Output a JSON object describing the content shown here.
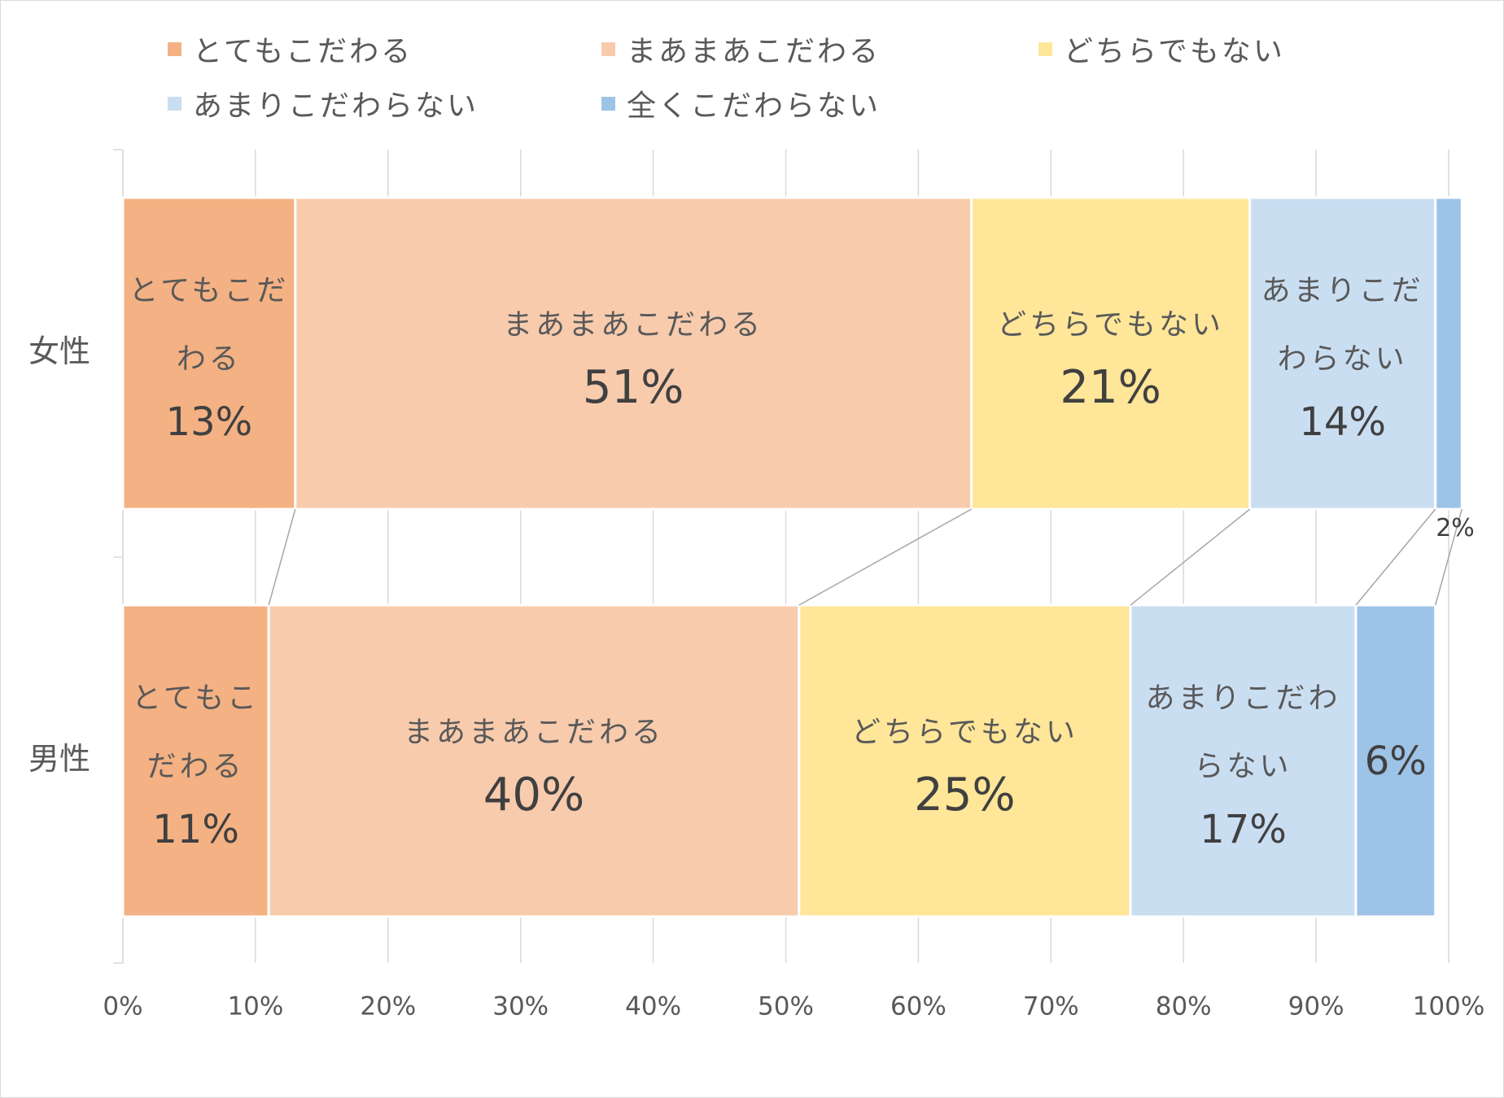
{
  "chart_data": {
    "type": "stacked_bar_horizontal",
    "categories": [
      "女性",
      "男性"
    ],
    "series": [
      {
        "name": "とてもこだわる",
        "color": "#f4b183",
        "values": [
          13,
          11
        ],
        "value_labels": [
          "13%",
          "11%"
        ]
      },
      {
        "name": "まあまあこだわる",
        "color": "#f8cbad",
        "values": [
          51,
          40
        ],
        "value_labels": [
          "51%",
          "40%"
        ]
      },
      {
        "name": "どちらでもない",
        "color": "#ffe699",
        "values": [
          21,
          25
        ],
        "value_labels": [
          "21%",
          "25%"
        ]
      },
      {
        "name": "あまりこだわらない",
        "color": "#cadef2",
        "values": [
          14,
          17
        ],
        "value_labels": [
          "14%",
          "17%"
        ]
      },
      {
        "name": "全くこだわらない",
        "color": "#9dc3e6",
        "values": [
          2,
          6
        ],
        "value_labels": [
          "2%",
          "6%"
        ]
      }
    ],
    "xlim": [
      0,
      100
    ],
    "xticks": [
      {
        "value": 0,
        "label": "0%"
      },
      {
        "value": 10,
        "label": "10%"
      },
      {
        "value": 20,
        "label": "20%"
      },
      {
        "value": 30,
        "label": "30%"
      },
      {
        "value": 40,
        "label": "40%"
      },
      {
        "value": 50,
        "label": "50%"
      },
      {
        "value": 60,
        "label": "60%"
      },
      {
        "value": 70,
        "label": "70%"
      },
      {
        "value": 80,
        "label": "80%"
      },
      {
        "value": 90,
        "label": "90%"
      },
      {
        "value": 100,
        "label": "100%"
      }
    ],
    "grid": true,
    "legend": "top"
  }
}
